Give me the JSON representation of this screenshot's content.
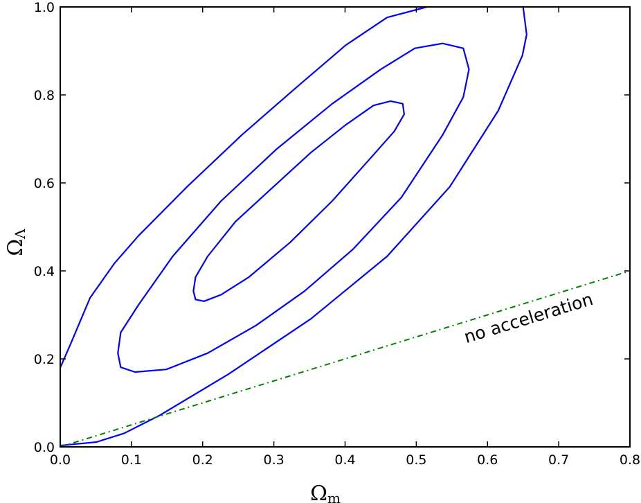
{
  "chart_data": {
    "type": "line",
    "title": "",
    "xlabel": "Ω",
    "xlabel_sub": "m",
    "ylabel": "Ω",
    "ylabel_sub": "Λ",
    "xlim": [
      0.0,
      0.8
    ],
    "ylim": [
      0.0,
      1.0
    ],
    "grid": false,
    "xticks": [
      "0.0",
      "0.1",
      "0.2",
      "0.3",
      "0.4",
      "0.5",
      "0.6",
      "0.7",
      "0.8"
    ],
    "yticks": [
      "0.0",
      "0.2",
      "0.4",
      "0.6",
      "0.8",
      "1.0"
    ],
    "colors": {
      "contour": "#0000ff",
      "no_acceleration": "#008000"
    },
    "series": [
      {
        "name": "contour-inner",
        "closed": true,
        "points": [
          [
            0.187,
            0.354
          ],
          [
            0.19,
            0.335
          ],
          [
            0.202,
            0.331
          ],
          [
            0.226,
            0.346
          ],
          [
            0.265,
            0.386
          ],
          [
            0.323,
            0.465
          ],
          [
            0.382,
            0.559
          ],
          [
            0.43,
            0.646
          ],
          [
            0.469,
            0.717
          ],
          [
            0.483,
            0.756
          ],
          [
            0.481,
            0.78
          ],
          [
            0.464,
            0.786
          ],
          [
            0.44,
            0.776
          ],
          [
            0.401,
            0.732
          ],
          [
            0.352,
            0.669
          ],
          [
            0.304,
            0.598
          ],
          [
            0.246,
            0.512
          ],
          [
            0.207,
            0.433
          ],
          [
            0.19,
            0.386
          ]
        ]
      },
      {
        "name": "contour-middle",
        "closed": true,
        "points": [
          [
            0.081,
            0.213
          ],
          [
            0.085,
            0.181
          ],
          [
            0.105,
            0.17
          ],
          [
            0.149,
            0.176
          ],
          [
            0.207,
            0.213
          ],
          [
            0.275,
            0.276
          ],
          [
            0.343,
            0.354
          ],
          [
            0.411,
            0.449
          ],
          [
            0.479,
            0.567
          ],
          [
            0.537,
            0.709
          ],
          [
            0.566,
            0.795
          ],
          [
            0.574,
            0.858
          ],
          [
            0.566,
            0.906
          ],
          [
            0.537,
            0.917
          ],
          [
            0.498,
            0.906
          ],
          [
            0.45,
            0.858
          ],
          [
            0.382,
            0.78
          ],
          [
            0.304,
            0.677
          ],
          [
            0.226,
            0.559
          ],
          [
            0.158,
            0.433
          ],
          [
            0.11,
            0.323
          ],
          [
            0.085,
            0.26
          ]
        ]
      },
      {
        "name": "contour-outer-upper",
        "closed": false,
        "points": [
          [
            0.0,
            0.18
          ],
          [
            0.013,
            0.228
          ],
          [
            0.042,
            0.339
          ],
          [
            0.076,
            0.417
          ],
          [
            0.11,
            0.48
          ],
          [
            0.178,
            0.591
          ],
          [
            0.255,
            0.709
          ],
          [
            0.333,
            0.819
          ],
          [
            0.401,
            0.913
          ],
          [
            0.459,
            0.976
          ],
          [
            0.515,
            1.0
          ]
        ]
      },
      {
        "name": "contour-outer-lower",
        "closed": false,
        "points": [
          [
            0.65,
            1.0
          ],
          [
            0.655,
            0.937
          ],
          [
            0.649,
            0.89
          ],
          [
            0.615,
            0.764
          ],
          [
            0.547,
            0.591
          ],
          [
            0.459,
            0.433
          ],
          [
            0.352,
            0.291
          ],
          [
            0.236,
            0.165
          ],
          [
            0.139,
            0.071
          ],
          [
            0.09,
            0.031
          ],
          [
            0.051,
            0.011
          ],
          [
            0.013,
            0.005
          ],
          [
            0.0,
            0.003
          ]
        ]
      },
      {
        "name": "no-acceleration",
        "style": "dashdot",
        "points": [
          [
            0.0,
            0.0
          ],
          [
            0.8,
            0.4
          ]
        ]
      }
    ],
    "annotations": [
      {
        "text": "no acceleration",
        "x": 0.66,
        "y": 0.28
      }
    ]
  }
}
